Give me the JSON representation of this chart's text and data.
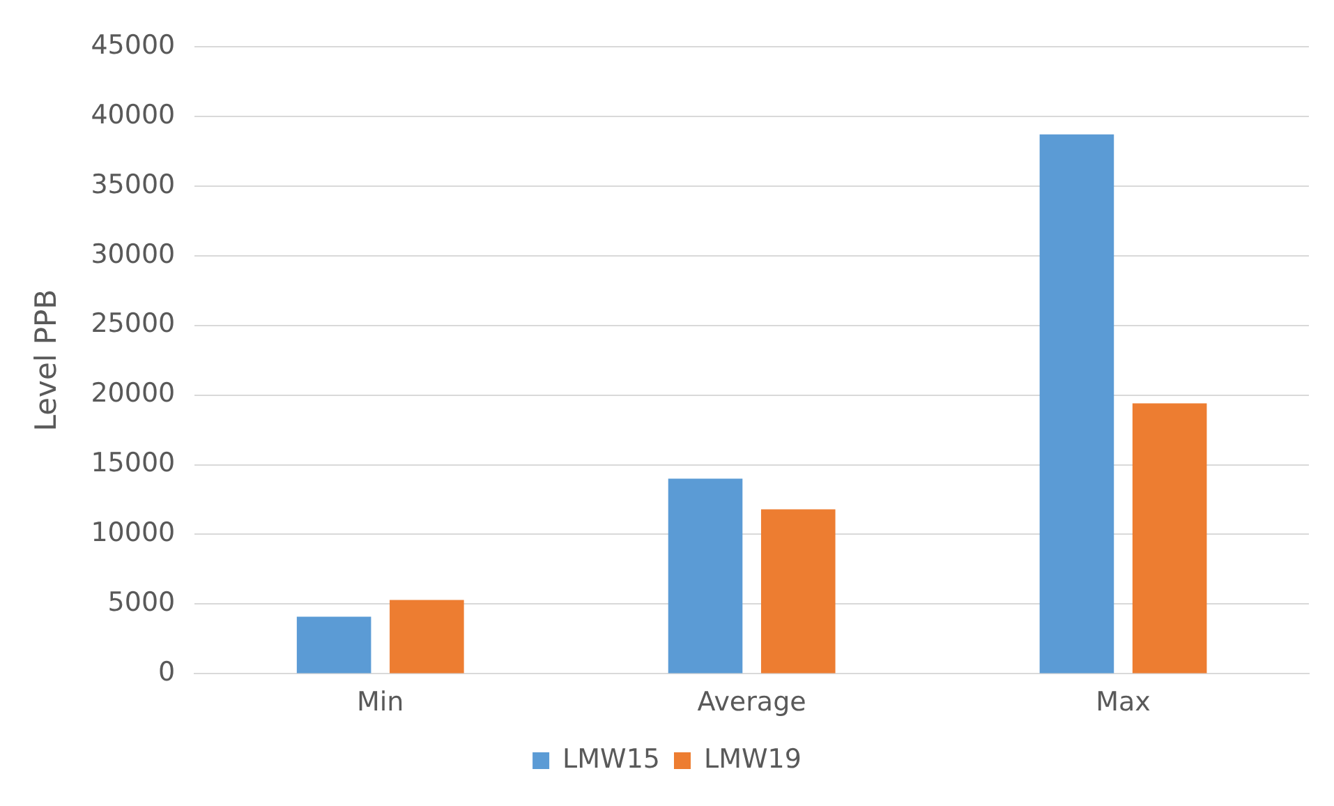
{
  "chart_data": {
    "type": "bar",
    "ylabel": "Level PPB",
    "categories": [
      "Min",
      "Average",
      "Max"
    ],
    "series": [
      {
        "name": "LMW15",
        "color": "#5b9bd5",
        "values": [
          4100,
          14000,
          38700
        ]
      },
      {
        "name": "LMW19",
        "color": "#ed7d31",
        "values": [
          5300,
          11800,
          19400
        ]
      }
    ],
    "ylim": [
      0,
      45000
    ],
    "yticks": [
      0,
      5000,
      10000,
      15000,
      20000,
      25000,
      30000,
      35000,
      40000,
      45000
    ],
    "grid": "y",
    "legend": "bottom"
  }
}
